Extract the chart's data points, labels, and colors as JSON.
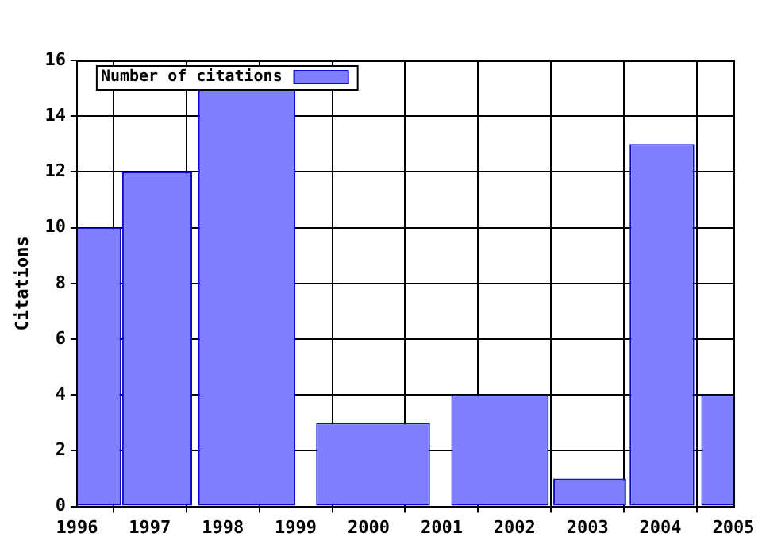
{
  "chart_data": {
    "type": "bar",
    "ylabel": "Citations",
    "x": [
      1996.2,
      1997.1,
      1998.33,
      2000.06,
      2001.8,
      2003.03,
      2004.02,
      2005.0
    ],
    "series": [
      {
        "name": "Number of citations",
        "color": "#7f7fff",
        "values": [
          10,
          12,
          15,
          3,
          4,
          1,
          13,
          4
        ]
      }
    ],
    "xlim": [
      1996,
      2005
    ],
    "xticks": [
      1996,
      1997,
      1998,
      1999,
      2000,
      2001,
      2002,
      2003,
      2004,
      2005
    ],
    "ylim": [
      0,
      16
    ],
    "yticks": [
      0,
      2,
      4,
      6,
      8,
      10,
      12,
      14,
      16
    ],
    "grid": true,
    "legend": "top left"
  }
}
